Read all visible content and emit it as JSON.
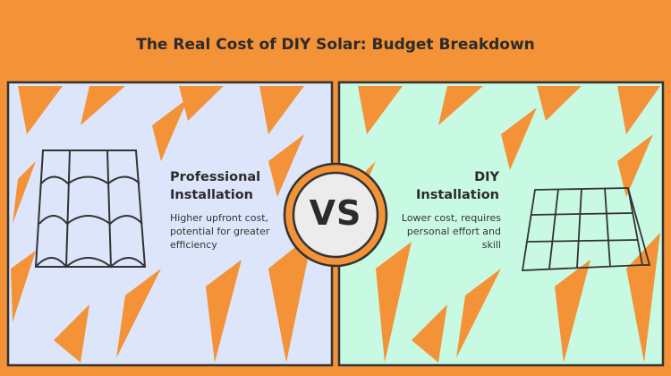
{
  "title": "The Real Cost of DIY Solar: Budget Breakdown",
  "left": {
    "heading": "Professional Installation",
    "description": "Higher upfront cost, potential for greater efficiency"
  },
  "center": {
    "label": "VS"
  },
  "right": {
    "heading": "DIY Installation",
    "description": "Lower cost, requires personal effort and skill"
  }
}
